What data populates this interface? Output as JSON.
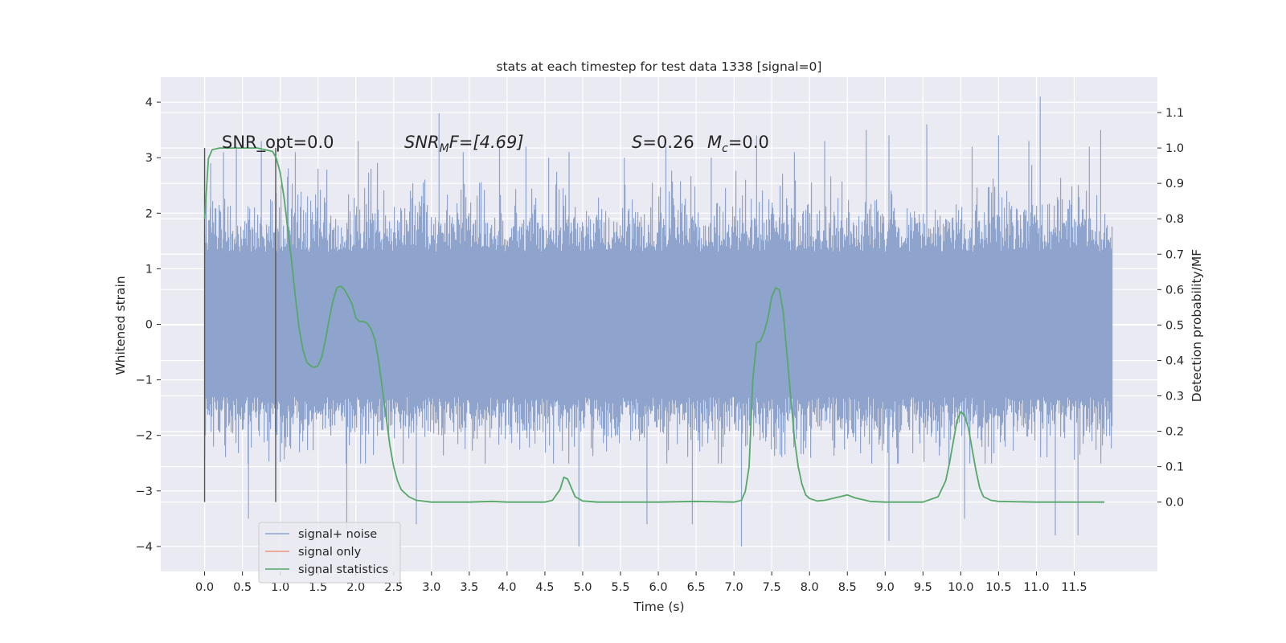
{
  "chart_data": {
    "type": "line",
    "title": "stats at each timestep for test data 1338 [signal=0]",
    "xlabel": "Time (s)",
    "ylabel": "Whitened strain",
    "ylabel_right": "Detection probability/MF",
    "xlim": [
      -0.58,
      12.6
    ],
    "ylim": [
      -4.45,
      4.45
    ],
    "ylim_right": [
      -0.196,
      1.2
    ],
    "x_ticks": [
      "0.0",
      "0.5",
      "1.0",
      "1.5",
      "2.0",
      "2.5",
      "3.0",
      "3.5",
      "4.0",
      "4.5",
      "5.0",
      "5.5",
      "6.0",
      "6.5",
      "7.0",
      "7.5",
      "8.0",
      "8.5",
      "9.0",
      "9.5",
      "10.0",
      "10.5",
      "11.0",
      "11.5"
    ],
    "y_ticks": [
      "4",
      "3",
      "2",
      "1",
      "0",
      "−1",
      "−2",
      "−3",
      "−4"
    ],
    "y_ticks_right": [
      "1.1",
      "1.0",
      "0.9",
      "0.8",
      "0.7",
      "0.6",
      "0.5",
      "0.4",
      "0.3",
      "0.2",
      "0.1",
      "0.0"
    ],
    "grid": true,
    "legend_position": "lower-left",
    "annotations": {
      "snr_opt": "SNR_opt=0.0",
      "snr_mf_main": "SNR",
      "snr_mf_sub": "M",
      "snr_mf_rest": "F=[4.69]",
      "s_main": "S",
      "s_rest": "=0.26",
      "mc_main": "M",
      "mc_sub": "c",
      "mc_rest": "=0.0"
    },
    "window_markers_x": [
      0.0,
      0.94
    ],
    "series": [
      {
        "name": "signal+ noise",
        "color": "#8fa4cc",
        "style": "dense-noise",
        "x_range": [
          0.0,
          12.0
        ],
        "envelope_core": [
          -1.3,
          1.3
        ],
        "typical_extent": [
          -2.5,
          2.9
        ],
        "extreme_peaks": [
          {
            "x": 0.08,
            "y": 2.9
          },
          {
            "x": 0.25,
            "y": 3.1
          },
          {
            "x": 0.42,
            "y": 3.2
          },
          {
            "x": 0.58,
            "y": -3.5
          },
          {
            "x": 0.75,
            "y": 3.3
          },
          {
            "x": 1.2,
            "y": 3.1
          },
          {
            "x": 1.5,
            "y": 2.8
          },
          {
            "x": 1.88,
            "y": -3.7
          },
          {
            "x": 2.03,
            "y": 3.3
          },
          {
            "x": 2.8,
            "y": -3.6
          },
          {
            "x": 3.1,
            "y": 3.8
          },
          {
            "x": 3.42,
            "y": 3.1
          },
          {
            "x": 3.9,
            "y": 3.2
          },
          {
            "x": 4.25,
            "y": 3.2
          },
          {
            "x": 4.55,
            "y": 3.0
          },
          {
            "x": 4.82,
            "y": 3.1
          },
          {
            "x": 4.95,
            "y": -4.0
          },
          {
            "x": 5.55,
            "y": 3.0
          },
          {
            "x": 5.85,
            "y": -3.6
          },
          {
            "x": 6.1,
            "y": 3.2
          },
          {
            "x": 6.45,
            "y": -3.6
          },
          {
            "x": 6.7,
            "y": 3.0
          },
          {
            "x": 7.1,
            "y": -4.0
          },
          {
            "x": 7.3,
            "y": 3.4
          },
          {
            "x": 7.8,
            "y": 3.1
          },
          {
            "x": 8.2,
            "y": 3.3
          },
          {
            "x": 8.75,
            "y": 3.5
          },
          {
            "x": 9.05,
            "y": 3.4
          },
          {
            "x": 9.05,
            "y": -3.9
          },
          {
            "x": 9.55,
            "y": 3.6
          },
          {
            "x": 10.05,
            "y": -3.5
          },
          {
            "x": 10.15,
            "y": 3.2
          },
          {
            "x": 10.5,
            "y": 3.4
          },
          {
            "x": 10.9,
            "y": 3.3
          },
          {
            "x": 11.05,
            "y": 4.1
          },
          {
            "x": 11.25,
            "y": -3.8
          },
          {
            "x": 11.55,
            "y": -3.8
          },
          {
            "x": 11.7,
            "y": 3.2
          },
          {
            "x": 11.85,
            "y": 3.5
          }
        ]
      },
      {
        "name": "signal only",
        "color": "#e9967a",
        "x": [],
        "y": []
      },
      {
        "name": "signal statistics",
        "color": "#55a868",
        "axis": "right",
        "x": [
          0.0,
          0.05,
          0.1,
          0.2,
          0.3,
          0.5,
          0.7,
          0.8,
          0.9,
          0.95,
          1.0,
          1.05,
          1.1,
          1.15,
          1.2,
          1.25,
          1.3,
          1.35,
          1.4,
          1.45,
          1.5,
          1.55,
          1.6,
          1.65,
          1.7,
          1.75,
          1.8,
          1.85,
          1.9,
          1.95,
          2.0,
          2.05,
          2.1,
          2.15,
          2.2,
          2.25,
          2.3,
          2.35,
          2.4,
          2.45,
          2.5,
          2.55,
          2.6,
          2.7,
          2.8,
          3.0,
          3.5,
          3.8,
          4.0,
          4.3,
          4.5,
          4.6,
          4.7,
          4.75,
          4.8,
          4.85,
          4.9,
          5.0,
          5.2,
          5.5,
          6.0,
          6.5,
          7.0,
          7.1,
          7.15,
          7.2,
          7.25,
          7.3,
          7.35,
          7.4,
          7.45,
          7.5,
          7.55,
          7.6,
          7.65,
          7.7,
          7.75,
          7.8,
          7.85,
          7.9,
          7.95,
          8.0,
          8.1,
          8.2,
          8.4,
          8.5,
          8.6,
          8.8,
          9.0,
          9.5,
          9.7,
          9.8,
          9.85,
          9.9,
          9.95,
          10.0,
          10.05,
          10.1,
          10.15,
          10.2,
          10.25,
          10.3,
          10.4,
          10.5,
          11.0,
          11.5,
          11.9
        ],
        "y": [
          0.8,
          0.97,
          0.995,
          1.0,
          1.0,
          1.0,
          1.0,
          0.995,
          0.99,
          0.97,
          0.93,
          0.86,
          0.77,
          0.68,
          0.58,
          0.49,
          0.43,
          0.395,
          0.385,
          0.38,
          0.385,
          0.41,
          0.46,
          0.52,
          0.57,
          0.605,
          0.61,
          0.6,
          0.58,
          0.56,
          0.52,
          0.51,
          0.51,
          0.505,
          0.49,
          0.46,
          0.4,
          0.32,
          0.24,
          0.16,
          0.1,
          0.06,
          0.035,
          0.015,
          0.005,
          0.0,
          0.0,
          0.002,
          0.0,
          0.0,
          0.0,
          0.005,
          0.035,
          0.07,
          0.065,
          0.04,
          0.015,
          0.003,
          0.0,
          0.0,
          0.0,
          0.002,
          0.0,
          0.005,
          0.03,
          0.1,
          0.35,
          0.45,
          0.455,
          0.48,
          0.52,
          0.58,
          0.605,
          0.6,
          0.54,
          0.42,
          0.3,
          0.18,
          0.1,
          0.05,
          0.02,
          0.01,
          0.003,
          0.005,
          0.015,
          0.02,
          0.012,
          0.002,
          0.0,
          0.0,
          0.015,
          0.06,
          0.11,
          0.17,
          0.23,
          0.255,
          0.245,
          0.21,
          0.15,
          0.09,
          0.04,
          0.015,
          0.005,
          0.002,
          0.0,
          0.0,
          0.0
        ]
      }
    ]
  }
}
